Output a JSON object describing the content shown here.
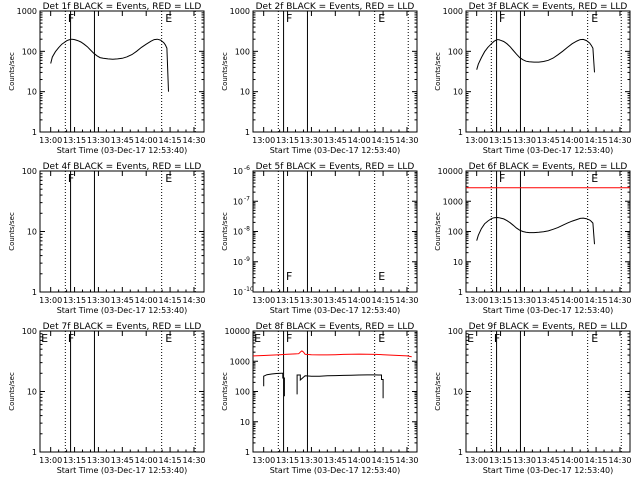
{
  "figure": {
    "background": "#ffffff",
    "axis_color": "#000000",
    "events_color": "#000000",
    "lld_color": "#ff0000"
  },
  "chart_data": [
    {
      "type": "line",
      "title": "Det 1f BLACK = Events, RED = LLD",
      "xlabel": "Start Time (03-Dec-17 12:53:40)",
      "ylabel": "Counts/sec",
      "yscale": "log",
      "ylim": [
        1,
        1000
      ],
      "xlim": [
        -6.7,
        96.3
      ],
      "yticks": [
        "1",
        "10",
        "100",
        "1000"
      ],
      "xticks": [
        "13:00",
        "13:15",
        "13:30",
        "13:45",
        "14:00",
        "14:15",
        "14:30"
      ],
      "solid_lines": [
        12.5,
        27.5
      ],
      "dotted_lines": [
        9.2,
        69.7,
        90.8
      ],
      "markers": [
        {
          "label": "F",
          "x": 10.8
        },
        {
          "label": "E",
          "x": 72.0
        }
      ],
      "series": [
        {
          "color": "#000000",
          "x": [
            0,
            1,
            3,
            5,
            7,
            9,
            10,
            11,
            12,
            13,
            14,
            15,
            17,
            19,
            21,
            23,
            25,
            27,
            29,
            31,
            33,
            36,
            39,
            42,
            45,
            48,
            51,
            54,
            57,
            60,
            63,
            65,
            67,
            69,
            71,
            72,
            73,
            74
          ],
          "values": [
            50,
            72,
            98,
            123,
            150,
            170,
            182,
            190,
            195,
            200,
            198,
            195,
            185,
            170,
            150,
            130,
            108,
            90,
            78,
            70,
            67,
            65,
            64,
            65,
            67,
            73,
            83,
            100,
            125,
            150,
            178,
            195,
            200,
            190,
            165,
            145,
            120,
            10
          ]
        }
      ]
    },
    {
      "type": "line",
      "title": "Det 2f BLACK = Events, RED = LLD",
      "xlabel": "Start Time (03-Dec-17 12:53:40)",
      "ylabel": "Counts/sec",
      "yscale": "log",
      "ylim": [
        1,
        1000
      ],
      "xlim": [
        -6.7,
        96.3
      ],
      "yticks": [
        "1",
        "10",
        "100",
        "1000"
      ],
      "xticks": [
        "13:00",
        "13:15",
        "13:30",
        "13:45",
        "14:00",
        "14:15",
        "14:30"
      ],
      "solid_lines": [
        12.5,
        27.5
      ],
      "dotted_lines": [
        9.2,
        69.7,
        90.8
      ],
      "markers": [
        {
          "label": "F",
          "x": 14.0
        },
        {
          "label": "E",
          "x": 72.0
        }
      ],
      "series": []
    },
    {
      "type": "line",
      "title": "Det 3f BLACK = Events, RED = LLD",
      "xlabel": "Start Time (03-Dec-17 12:53:40)",
      "ylabel": "Counts/sec",
      "yscale": "log",
      "ylim": [
        1,
        1000
      ],
      "xlim": [
        -6.7,
        96.3
      ],
      "yticks": [
        "1",
        "10",
        "100",
        "1000"
      ],
      "xticks": [
        "13:00",
        "13:15",
        "13:30",
        "13:45",
        "14:00",
        "14:15",
        "14:30"
      ],
      "solid_lines": [
        12.5,
        27.5
      ],
      "dotted_lines": [
        9.2,
        69.7,
        90.8
      ],
      "markers": [
        {
          "label": "F",
          "x": 14.0
        },
        {
          "label": "E",
          "x": 72.0
        }
      ],
      "series": [
        {
          "color": "#000000",
          "x": [
            0,
            1,
            3,
            5,
            7,
            9,
            10,
            11,
            12,
            13,
            14,
            15,
            17,
            19,
            21,
            23,
            25,
            27,
            29,
            31,
            33,
            36,
            39,
            42,
            45,
            48,
            51,
            54,
            57,
            60,
            63,
            65,
            67,
            69,
            71,
            72,
            73,
            74
          ],
          "values": [
            35,
            48,
            70,
            98,
            125,
            150,
            165,
            178,
            188,
            195,
            193,
            188,
            175,
            155,
            130,
            105,
            85,
            70,
            62,
            57,
            55,
            54,
            54,
            56,
            60,
            68,
            82,
            100,
            125,
            155,
            180,
            195,
            198,
            185,
            160,
            140,
            120,
            30
          ]
        }
      ]
    },
    {
      "type": "line",
      "title": "Det 4f BLACK = Events, RED = LLD",
      "xlabel": "Start Time (03-Dec-17 12:53:40)",
      "ylabel": "Counts/sec",
      "yscale": "log",
      "ylim": [
        1,
        100
      ],
      "xlim": [
        -6.7,
        96.3
      ],
      "yticks": [
        "1",
        "10",
        "100"
      ],
      "xticks": [
        "13:00",
        "13:15",
        "13:30",
        "13:45",
        "14:00",
        "14:15",
        "14:30"
      ],
      "solid_lines": [
        12.5,
        27.5
      ],
      "dotted_lines": [
        9.2,
        69.7,
        90.8
      ],
      "markers": [
        {
          "label": "F",
          "x": 10.8
        },
        {
          "label": "E",
          "x": 72.0
        }
      ],
      "series": []
    },
    {
      "type": "line",
      "title": "Det 5f BLACK = Events, RED = LLD",
      "xlabel": "Start Time (03-Dec-17 12:53:40)",
      "ylabel": "Counts/sec",
      "yscale": "log",
      "ylim": [
        1e-10,
        1e-06
      ],
      "xlim": [
        -6.7,
        96.3
      ],
      "yticks": [
        "10",
        "10",
        "10",
        "10",
        "10"
      ],
      "ytick_exponents": [
        "-10",
        "-9",
        "-8",
        "-7",
        "-6"
      ],
      "xticks": [
        "13:00",
        "13:15",
        "13:30",
        "13:45",
        "14:00",
        "14:15",
        "14:30"
      ],
      "solid_lines": [
        12.5,
        27.5
      ],
      "dotted_lines": [
        9.2,
        69.7,
        90.8
      ],
      "markers": [
        {
          "label": "F",
          "x": 14.0
        },
        {
          "label": "E",
          "x": 72.0
        }
      ],
      "series": []
    },
    {
      "type": "line",
      "title": "Det 6f BLACK = Events, RED = LLD",
      "xlabel": "Start Time (03-Dec-17 12:53:40)",
      "ylabel": "Counts/sec",
      "yscale": "log",
      "ylim": [
        1,
        10000
      ],
      "xlim": [
        -6.7,
        96.3
      ],
      "yticks": [
        "1",
        "10",
        "100",
        "1000",
        "10000"
      ],
      "xticks": [
        "13:00",
        "13:15",
        "13:30",
        "13:45",
        "14:00",
        "14:15",
        "14:30"
      ],
      "solid_lines": [
        12.5,
        27.5
      ],
      "dotted_lines": [
        9.2,
        69.7,
        90.8
      ],
      "markers": [
        {
          "label": "F",
          "x": 14.0
        },
        {
          "label": "E",
          "x": 72.0
        }
      ],
      "series": [
        {
          "color": "#ff0000",
          "x": [
            -6.7,
            96.3
          ],
          "values": [
            2800,
            2800
          ]
        },
        {
          "color": "#000000",
          "x": [
            0,
            1,
            3,
            5,
            7,
            9,
            10,
            11,
            12,
            13,
            14,
            15,
            17,
            19,
            21,
            23,
            25,
            27,
            29,
            31,
            33,
            36,
            39,
            42,
            45,
            48,
            51,
            54,
            57,
            60,
            63,
            65,
            67,
            69,
            71,
            72,
            73,
            74
          ],
          "values": [
            50,
            75,
            125,
            180,
            220,
            260,
            275,
            285,
            288,
            290,
            285,
            278,
            260,
            230,
            195,
            160,
            130,
            110,
            100,
            95,
            92,
            92,
            94,
            98,
            105,
            118,
            135,
            160,
            190,
            220,
            250,
            272,
            278,
            265,
            240,
            215,
            190,
            38
          ]
        }
      ]
    },
    {
      "type": "line",
      "title": "Det 7f BLACK = Events, RED = LLD",
      "xlabel": "Start Time (03-Dec-17 12:53:40)",
      "ylabel": "Counts/sec",
      "yscale": "log",
      "ylim": [
        1,
        100
      ],
      "xlim": [
        -6.7,
        96.3
      ],
      "yticks": [
        "1",
        "10",
        "100"
      ],
      "xticks": [
        "13:00",
        "13:15",
        "13:30",
        "13:45",
        "14:00",
        "14:15",
        "14:30"
      ],
      "solid_lines": [
        12.5,
        27.5
      ],
      "dotted_lines": [
        9.2,
        69.7,
        90.8
      ],
      "markers": [
        {
          "label": "E",
          "x": -6.0
        },
        {
          "label": "F",
          "x": 10.8
        },
        {
          "label": "E",
          "x": 72.0
        }
      ],
      "series": []
    },
    {
      "type": "line",
      "title": "Det 8f BLACK = Events, RED = LLD",
      "xlabel": "Start Time (03-Dec-17 12:53:40)",
      "ylabel": "Counts/sec",
      "yscale": "log",
      "ylim": [
        1,
        10000
      ],
      "xlim": [
        -6.7,
        96.3
      ],
      "yticks": [
        "1",
        "10",
        "100",
        "1000",
        "10000"
      ],
      "xticks": [
        "13:00",
        "13:15",
        "13:30",
        "13:45",
        "14:00",
        "14:15",
        "14:30"
      ],
      "solid_lines": [
        12.5,
        27.5
      ],
      "dotted_lines": [
        9.2,
        69.7,
        90.8
      ],
      "markers": [
        {
          "label": "E",
          "x": -6.0
        },
        {
          "label": "F",
          "x": 14.0
        },
        {
          "label": "E",
          "x": 72.0
        }
      ],
      "series": [
        {
          "color": "#ff0000",
          "x": [
            -6.7,
            0,
            5,
            10,
            15,
            20,
            22,
            23,
            24,
            25,
            26,
            27,
            30,
            35,
            40,
            45,
            50,
            55,
            60,
            65,
            70,
            75,
            80,
            85,
            90,
            93
          ],
          "values": [
            1500,
            1550,
            1600,
            1650,
            1700,
            1750,
            1780,
            2000,
            2200,
            2000,
            1700,
            1680,
            1650,
            1620,
            1620,
            1650,
            1680,
            1700,
            1720,
            1700,
            1680,
            1650,
            1600,
            1550,
            1500,
            1400
          ]
        },
        {
          "color": "#000000",
          "x": [
            0,
            0,
            2,
            5,
            8,
            11,
            12,
            12,
            13,
            13
          ],
          "values": [
            150,
            320,
            360,
            380,
            395,
            400,
            400,
            280,
            280,
            70
          ]
        },
        {
          "color": "#000000",
          "x": [
            21,
            21,
            23,
            23,
            26,
            30,
            35,
            40,
            45,
            50,
            55,
            60,
            65,
            70,
            72,
            74,
            74,
            75,
            75
          ],
          "values": [
            80,
            350,
            350,
            240,
            330,
            320,
            320,
            330,
            335,
            340,
            345,
            350,
            355,
            355,
            350,
            350,
            250,
            250,
            60
          ]
        }
      ]
    },
    {
      "type": "line",
      "title": "Det 9f BLACK = Events, RED = LLD",
      "xlabel": "Start Time (03-Dec-17 12:53:40)",
      "ylabel": "Counts/sec",
      "yscale": "log",
      "ylim": [
        1,
        100
      ],
      "xlim": [
        -6.7,
        96.3
      ],
      "yticks": [
        "1",
        "10",
        "100"
      ],
      "xticks": [
        "13:00",
        "13:15",
        "13:30",
        "13:45",
        "14:00",
        "14:15",
        "14:30"
      ],
      "solid_lines": [
        12.5,
        27.5
      ],
      "dotted_lines": [
        9.2,
        69.7,
        90.8
      ],
      "markers": [
        {
          "label": "E",
          "x": -6.0
        },
        {
          "label": "F",
          "x": 10.8
        },
        {
          "label": "E",
          "x": 72.0
        }
      ],
      "series": []
    }
  ]
}
